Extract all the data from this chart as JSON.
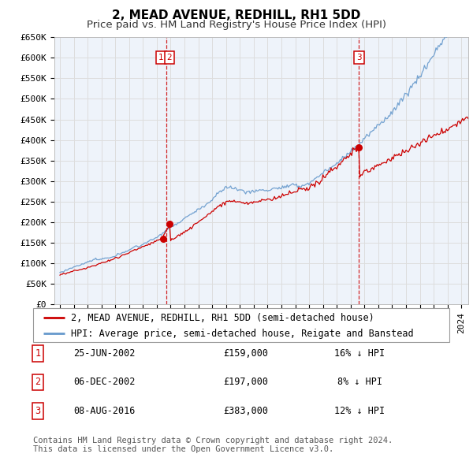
{
  "title": "2, MEAD AVENUE, REDHILL, RH1 5DD",
  "subtitle": "Price paid vs. HM Land Registry's House Price Index (HPI)",
  "ylim": [
    0,
    650000
  ],
  "yticks": [
    0,
    50000,
    100000,
    150000,
    200000,
    250000,
    300000,
    350000,
    400000,
    450000,
    500000,
    550000,
    600000,
    650000
  ],
  "ytick_labels": [
    "£0",
    "£50K",
    "£100K",
    "£150K",
    "£200K",
    "£250K",
    "£300K",
    "£350K",
    "£400K",
    "£450K",
    "£500K",
    "£550K",
    "£600K",
    "£650K"
  ],
  "property_color": "#cc0000",
  "hpi_color": "#6699cc",
  "vline_color": "#cc0000",
  "grid_color": "#dddddd",
  "background_color": "#ffffff",
  "chart_bg_color": "#eef3fa",
  "sale_dates_decimal": [
    2002.48,
    2002.92,
    2016.6
  ],
  "sale_prices": [
    159000,
    197000,
    383000
  ],
  "sale_labels": [
    "1",
    "2",
    "3"
  ],
  "vline_dates": [
    2002.7,
    2016.6
  ],
  "legend_property_label": "2, MEAD AVENUE, REDHILL, RH1 5DD (semi-detached house)",
  "legend_hpi_label": "HPI: Average price, semi-detached house, Reigate and Banstead",
  "table_rows": [
    {
      "num": "1",
      "date": "25-JUN-2002",
      "price": "£159,000",
      "hpi": "16% ↓ HPI"
    },
    {
      "num": "2",
      "date": "06-DEC-2002",
      "price": "£197,000",
      "hpi": "8% ↓ HPI"
    },
    {
      "num": "3",
      "date": "08-AUG-2016",
      "price": "£383,000",
      "hpi": "12% ↓ HPI"
    }
  ],
  "footer": "Contains HM Land Registry data © Crown copyright and database right 2024.\nThis data is licensed under the Open Government Licence v3.0.",
  "title_fontsize": 11,
  "subtitle_fontsize": 9.5,
  "tick_fontsize": 8,
  "legend_fontsize": 8.5,
  "table_fontsize": 8.5,
  "footer_fontsize": 7.5
}
